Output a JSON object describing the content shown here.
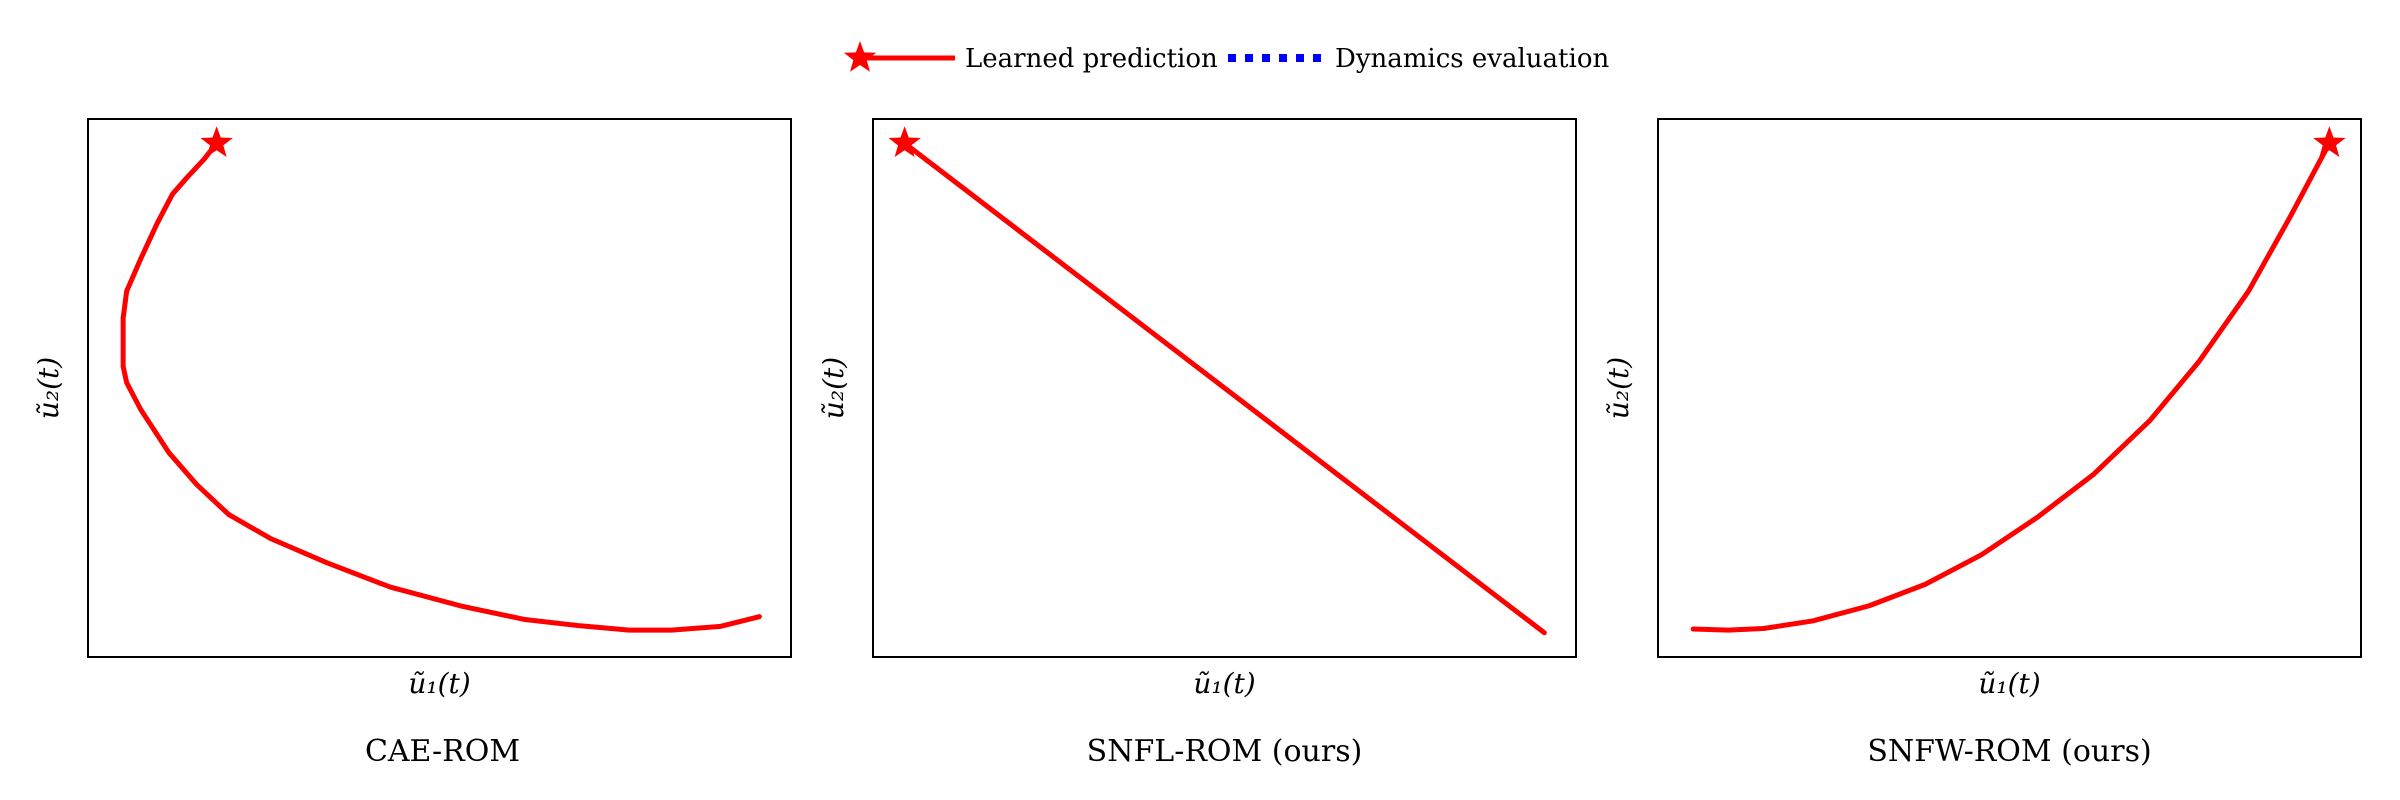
{
  "legend": {
    "items": [
      {
        "label": "Learned prediction",
        "style": "solid-star",
        "color": "#ff0000"
      },
      {
        "label": "Dynamics evaluation",
        "style": "dotted",
        "color": "#0000ff"
      }
    ]
  },
  "chart_data": [
    {
      "type": "line",
      "caption": "CAE-ROM",
      "xlabel": "ũ₁(t)",
      "ylabel": "ũ₂(t)",
      "xlim": [
        0,
        1
      ],
      "ylim": [
        0,
        1
      ],
      "ticks": false,
      "grid": false,
      "series": [
        {
          "color": "#ff0000",
          "marker_at_start": "star",
          "x": [
            0.183,
            0.165,
            0.14,
            0.12,
            0.098,
            0.075,
            0.055,
            0.05,
            0.05,
            0.055,
            0.075,
            0.115,
            0.155,
            0.2,
            0.26,
            0.34,
            0.43,
            0.53,
            0.62,
            0.7,
            0.77,
            0.83,
            0.9,
            0.955
          ],
          "y": [
            0.955,
            0.925,
            0.89,
            0.86,
            0.805,
            0.74,
            0.68,
            0.63,
            0.54,
            0.51,
            0.46,
            0.38,
            0.32,
            0.265,
            0.22,
            0.175,
            0.13,
            0.095,
            0.07,
            0.058,
            0.05,
            0.05,
            0.057,
            0.075
          ]
        }
      ]
    },
    {
      "type": "line",
      "caption": "SNFL-ROM (ours)",
      "xlabel": "ũ₁(t)",
      "ylabel": "ũ₂(t)",
      "xlim": [
        0,
        1
      ],
      "ylim": [
        0,
        1
      ],
      "ticks": false,
      "grid": false,
      "series": [
        {
          "color": "#ff0000",
          "marker_at_start": "star",
          "x": [
            0.045,
            0.955
          ],
          "y": [
            0.955,
            0.045
          ]
        }
      ]
    },
    {
      "type": "line",
      "caption": "SNFW-ROM (ours)",
      "xlabel": "ũ₁(t)",
      "ylabel": "ũ₂(t)",
      "xlim": [
        0,
        1
      ],
      "ylim": [
        0,
        1
      ],
      "ticks": false,
      "grid": false,
      "series": [
        {
          "color": "#ff0000",
          "marker_at_start": "star",
          "x": [
            0.955,
            0.9,
            0.84,
            0.77,
            0.7,
            0.62,
            0.54,
            0.46,
            0.38,
            0.3,
            0.22,
            0.15,
            0.1,
            0.05
          ],
          "y": [
            0.955,
            0.82,
            0.68,
            0.55,
            0.44,
            0.34,
            0.26,
            0.19,
            0.135,
            0.095,
            0.067,
            0.053,
            0.05,
            0.052
          ]
        }
      ]
    }
  ]
}
